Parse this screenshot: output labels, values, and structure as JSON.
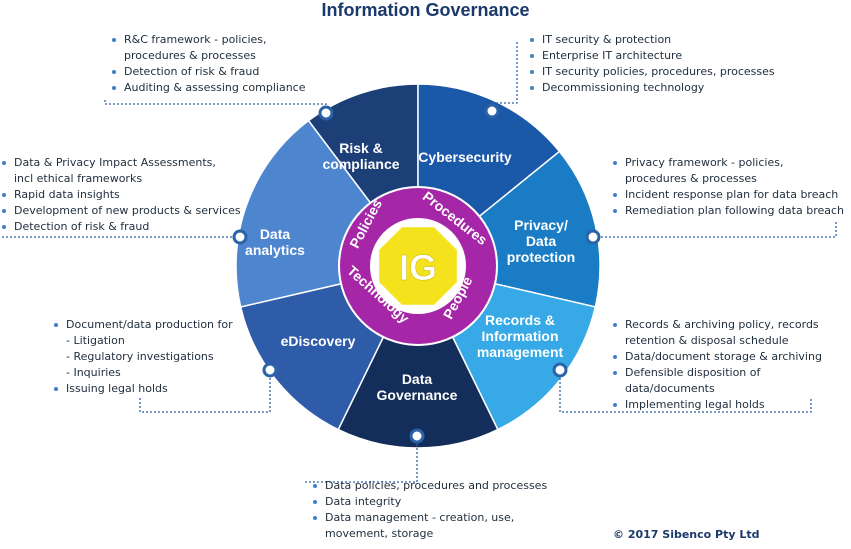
{
  "title": "Information Governance",
  "copyright": "© 2017 Sibenco Pty Ltd",
  "center": {
    "label": "IG"
  },
  "ring": {
    "policies": "Policies",
    "procedures": "Procedures",
    "people": "People",
    "technology": "Technology"
  },
  "segments": {
    "risk": [
      "Risk &",
      "compliance"
    ],
    "cyber": [
      "Cybersecurity"
    ],
    "privacy": [
      "Privacy/",
      "Data",
      "protection"
    ],
    "records": [
      "Records &",
      "Information",
      "management"
    ],
    "datagov": [
      "Data",
      "Governance"
    ],
    "ediscovery": [
      "eDiscovery"
    ],
    "analytics": [
      "Data",
      "analytics"
    ]
  },
  "lists": {
    "risk": [
      "R&C framework - policies,",
      "procedures & processes",
      "Detection of risk & fraud",
      "Auditing & assessing compliance"
    ],
    "cyber": [
      "IT security & protection",
      "Enterprise IT architecture",
      "IT security policies, procedures, processes",
      "Decommissioning technology"
    ],
    "analytics": [
      "Data & Privacy Impact Assessments,",
      "incl ethical frameworks",
      "Rapid data insights",
      "Development of new products & services",
      "Detection of risk & fraud"
    ],
    "privacy": [
      "Privacy framework - policies,",
      "procedures & processes",
      "Incident response plan for data breach",
      "Remediation plan following data breach"
    ],
    "ediscovery": [
      "Document/data production for",
      "- Litigation",
      "- Regulatory investigations",
      "- Inquiries",
      "Issuing legal holds"
    ],
    "records": [
      "Records & archiving policy, records",
      "retention & disposal schedule",
      "Data/document storage & archiving",
      "Defensible disposition of data/documents",
      "Implementing legal holds"
    ],
    "datagov": [
      "Data policies, procedures and processes",
      "Data integrity",
      "Data management - creation, use,",
      "movement, storage"
    ]
  },
  "colors": {
    "risk": "#1d3f77",
    "cyber": "#1a58a8",
    "privacy": "#1a7cc4",
    "records": "#36a9e6",
    "datagov": "#132e5a",
    "ediscovery": "#2f5ca8",
    "analytics": "#4d86cf",
    "ring": "#a626a8",
    "hub": "#f4e31c",
    "hub_ring": "#ffffff",
    "connector": "#2c62a8"
  }
}
